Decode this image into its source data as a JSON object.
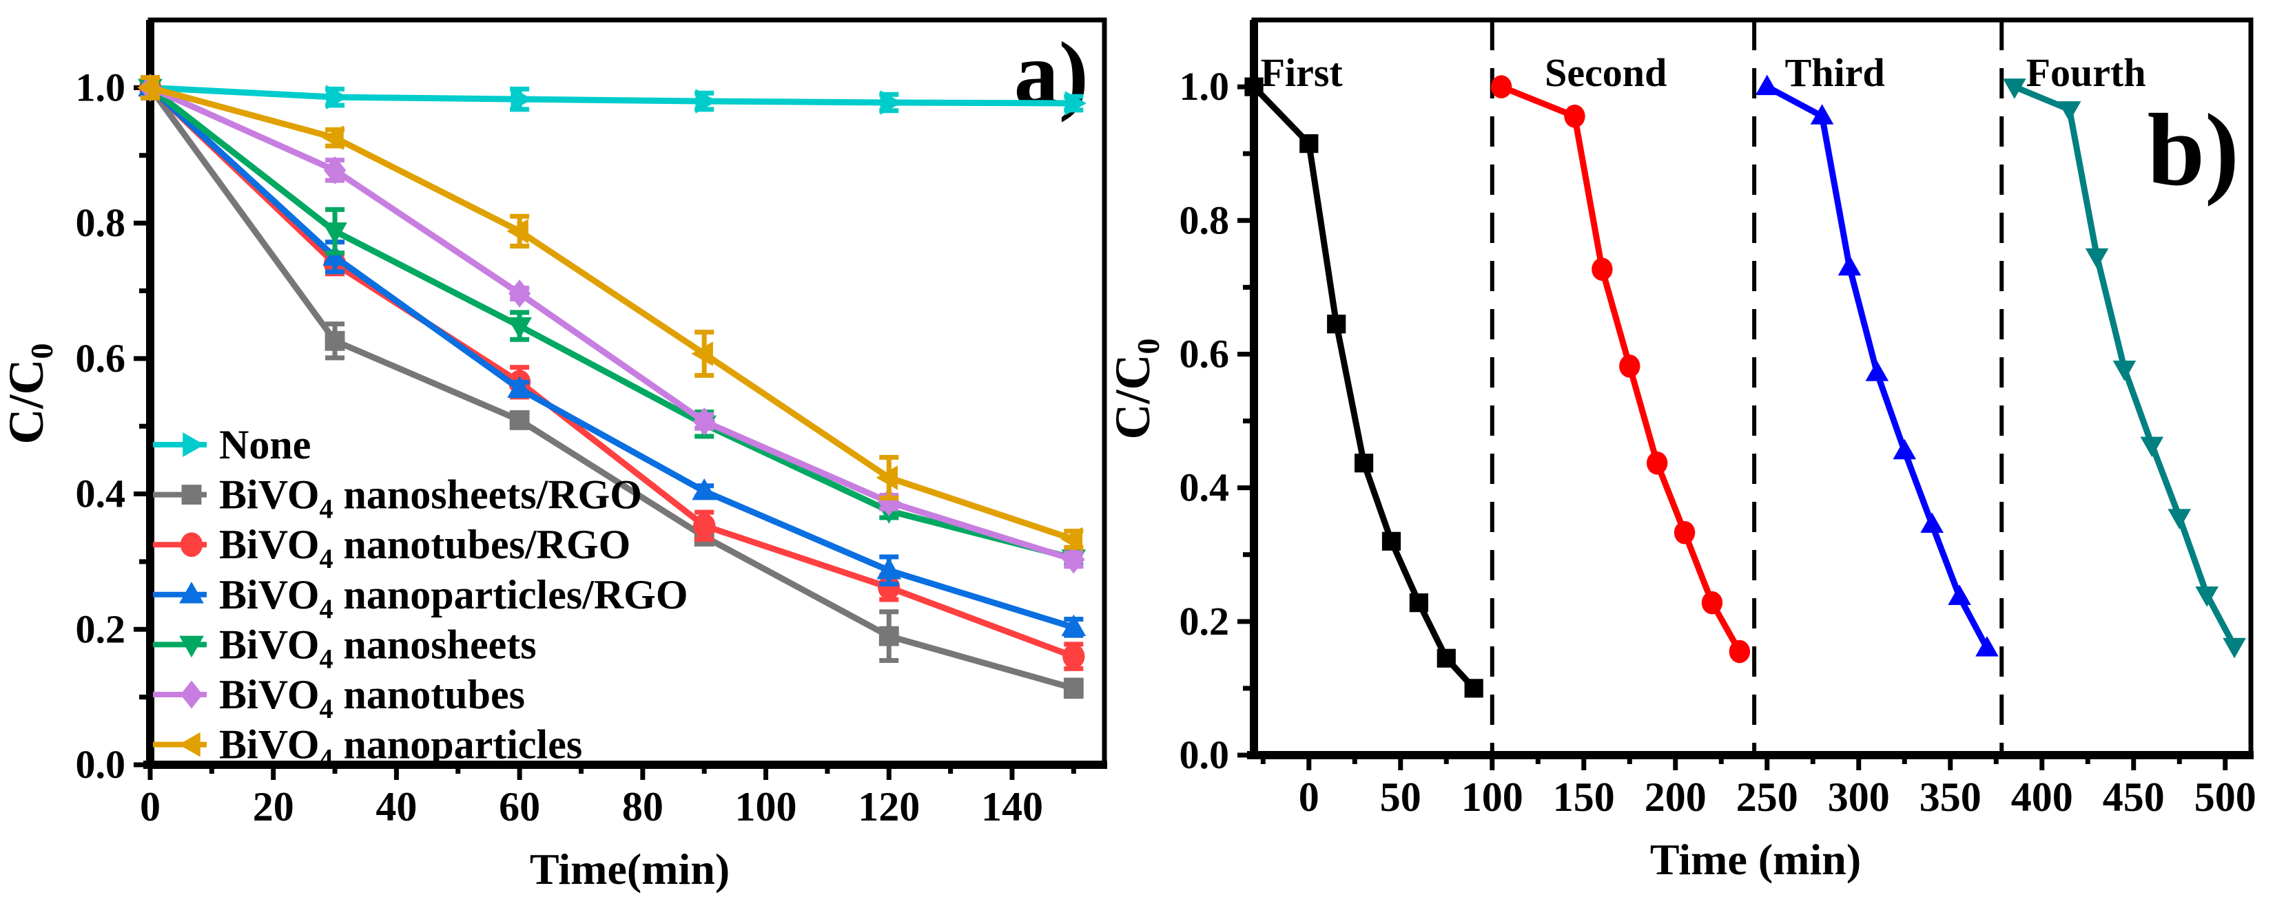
{
  "chart_data": [
    {
      "type": "line",
      "panel_label": "a)",
      "xlabel": "Time(min)",
      "ylabel": {
        "main": "C/C",
        "sub": "0"
      },
      "xlim": [
        0,
        155
      ],
      "ylim": [
        0,
        1.1
      ],
      "xticks": [
        0,
        20,
        40,
        60,
        80,
        100,
        120,
        140
      ],
      "yticks": [
        "0.0",
        "0.2",
        "0.4",
        "0.6",
        "0.8",
        "1.0"
      ],
      "grid": false,
      "legend_position": "bottom-left",
      "x": [
        0,
        30,
        60,
        90,
        120,
        150
      ],
      "series": [
        {
          "name": {
            "prefix": "None",
            "sub": "",
            "suffix": ""
          },
          "color": "#00CCCC",
          "marker": "triangle-right",
          "values": [
            1.0,
            0.986,
            0.983,
            0.98,
            0.978,
            0.977
          ],
          "errors": [
            0.012,
            0.012,
            0.015,
            0.012,
            0.012,
            0.01
          ]
        },
        {
          "name": {
            "prefix": "BiVO",
            "sub": "4",
            "suffix": " nanosheets/RGO"
          },
          "color": "#777777",
          "marker": "square",
          "values": [
            1.0,
            0.626,
            0.509,
            0.337,
            0.19,
            0.113
          ],
          "errors": [
            0.015,
            0.025,
            0.008,
            0.01,
            0.036,
            0.012
          ]
        },
        {
          "name": {
            "prefix": "BiVO",
            "sub": "4",
            "suffix": " nanotubes/RGO"
          },
          "color": "#FF4040",
          "marker": "circle",
          "values": [
            1.0,
            0.74,
            0.565,
            0.353,
            0.262,
            0.16
          ],
          "errors": [
            0.015,
            0.015,
            0.022,
            0.02,
            0.018,
            0.018
          ]
        },
        {
          "name": {
            "prefix": "BiVO",
            "sub": "4",
            "suffix": " nanoparticles/RGO"
          },
          "color": "#0A6FE0",
          "marker": "triangle-up",
          "values": [
            1.0,
            0.75,
            0.555,
            0.404,
            0.287,
            0.203
          ],
          "errors": [
            0.015,
            0.022,
            0.01,
            0.008,
            0.02,
            0.012
          ]
        },
        {
          "name": {
            "prefix": "BiVO",
            "sub": "4",
            "suffix": " nanosheets"
          },
          "color": "#00A862",
          "marker": "triangle-down",
          "values": [
            1.0,
            0.788,
            0.648,
            0.503,
            0.375,
            0.305
          ],
          "errors": [
            0.015,
            0.032,
            0.02,
            0.018,
            0.01,
            0.01
          ]
        },
        {
          "name": {
            "prefix": "BiVO",
            "sub": "4",
            "suffix": " nanotubes"
          },
          "color": "#C77EE0",
          "marker": "diamond",
          "values": [
            1.0,
            0.878,
            0.696,
            0.507,
            0.388,
            0.303
          ],
          "errors": [
            0.015,
            0.015,
            0.008,
            0.01,
            0.01,
            0.01
          ]
        },
        {
          "name": {
            "prefix": "BiVO",
            "sub": "4",
            "suffix": " nanoparticles"
          },
          "color": "#E0A000",
          "marker": "triangle-left",
          "values": [
            1.0,
            0.926,
            0.788,
            0.607,
            0.424,
            0.333
          ],
          "errors": [
            0.015,
            0.012,
            0.022,
            0.032,
            0.03,
            0.012
          ]
        }
      ]
    },
    {
      "type": "line",
      "panel_label": "b)",
      "xlabel": "Time (min)",
      "ylabel": {
        "main": "C/C",
        "sub": "0"
      },
      "xlim": [
        -30,
        514
      ],
      "ylim": [
        0,
        1.1
      ],
      "xticks": [
        0,
        50,
        100,
        150,
        200,
        250,
        300,
        350,
        400,
        450,
        500
      ],
      "yticks": [
        "0.0",
        "0.2",
        "0.4",
        "0.6",
        "0.8",
        "1.0"
      ],
      "grid": false,
      "cycle_dividers": [
        100,
        243,
        378
      ],
      "annotations": [
        "First",
        "Second",
        "Third",
        "Fourth"
      ],
      "series": [
        {
          "name": "First",
          "color": "#000000",
          "marker": "square",
          "x": [
            -30,
            0,
            15,
            30,
            45,
            60,
            75,
            90
          ],
          "values": [
            1.0,
            0.915,
            0.645,
            0.437,
            0.32,
            0.228,
            0.145,
            0.1
          ]
        },
        {
          "name": "Second",
          "color": "#FF0000",
          "marker": "circle",
          "x": [
            105,
            145,
            160,
            175,
            190,
            205,
            220,
            235
          ],
          "values": [
            1.0,
            0.956,
            0.727,
            0.582,
            0.437,
            0.333,
            0.228,
            0.155
          ]
        },
        {
          "name": "Third",
          "color": "#0000FF",
          "marker": "triangle-up",
          "x": [
            250,
            280,
            295,
            310,
            325,
            340,
            355,
            370
          ],
          "values": [
            1.0,
            0.956,
            0.73,
            0.572,
            0.455,
            0.345,
            0.237,
            0.16
          ]
        },
        {
          "name": "Fourth",
          "color": "#008080",
          "marker": "triangle-down",
          "x": [
            385,
            415,
            430,
            445,
            460,
            475,
            490,
            505
          ],
          "values": [
            1.0,
            0.966,
            0.746,
            0.578,
            0.464,
            0.356,
            0.24,
            0.163
          ]
        }
      ]
    }
  ]
}
